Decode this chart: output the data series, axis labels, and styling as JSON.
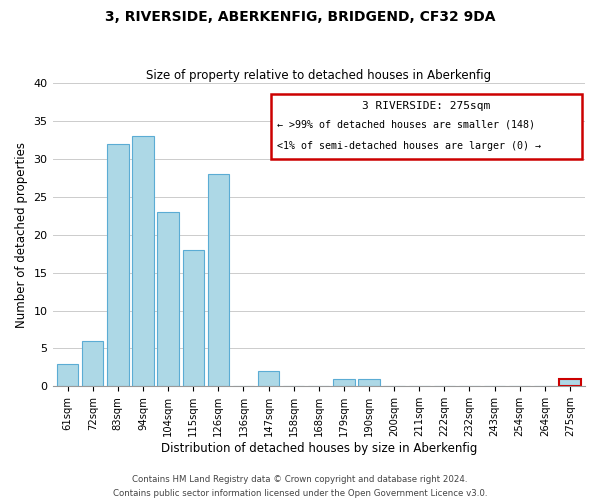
{
  "title": "3, RIVERSIDE, ABERKENFIG, BRIDGEND, CF32 9DA",
  "subtitle": "Size of property relative to detached houses in Aberkenfig",
  "xlabel": "Distribution of detached houses by size in Aberkenfig",
  "ylabel": "Number of detached properties",
  "bar_labels": [
    "61sqm",
    "72sqm",
    "83sqm",
    "94sqm",
    "104sqm",
    "115sqm",
    "126sqm",
    "136sqm",
    "147sqm",
    "158sqm",
    "168sqm",
    "179sqm",
    "190sqm",
    "200sqm",
    "211sqm",
    "222sqm",
    "232sqm",
    "243sqm",
    "254sqm",
    "264sqm",
    "275sqm"
  ],
  "bar_heights": [
    3,
    6,
    32,
    33,
    23,
    18,
    28,
    0,
    2,
    0,
    0,
    1,
    1,
    0,
    0,
    0,
    0,
    0,
    0,
    0,
    1
  ],
  "bar_color": "#add8e6",
  "bar_edge_color": "#5bacd4",
  "highlight_bar_index": 20,
  "highlight_bar_edge_color": "#cc0000",
  "legend_title": "3 RIVERSIDE: 275sqm",
  "legend_line1": "← >99% of detached houses are smaller (148)",
  "legend_line2": "<1% of semi-detached houses are larger (0) →",
  "legend_box_color": "#cc0000",
  "ylim": [
    0,
    40
  ],
  "yticks": [
    0,
    5,
    10,
    15,
    20,
    25,
    30,
    35,
    40
  ],
  "footer1": "Contains HM Land Registry data © Crown copyright and database right 2024.",
  "footer2": "Contains public sector information licensed under the Open Government Licence v3.0.",
  "bg_color": "#ffffff",
  "grid_color": "#cccccc"
}
